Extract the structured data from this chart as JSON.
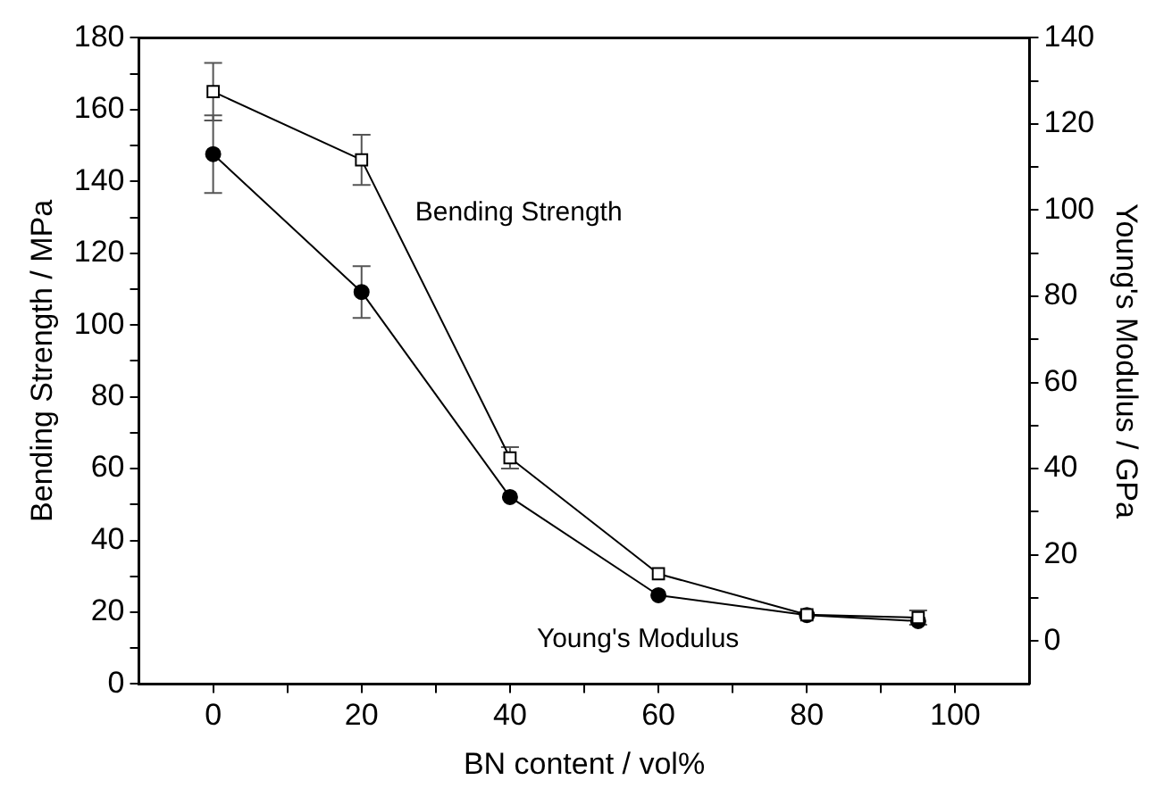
{
  "chart_data": {
    "type": "line",
    "xlabel": "BN content / vol%",
    "ylabel": "Bending Strength / MPa",
    "y2label": "Young's Modulus / GPa",
    "x": [
      0,
      20,
      40,
      60,
      80,
      95
    ],
    "series": [
      {
        "name": "Bending Strength",
        "color": "#000000",
        "marker": "square",
        "values": [
          165,
          146,
          63,
          30.7,
          19.3,
          18.5
        ],
        "errors": [
          8,
          7,
          3,
          null,
          null,
          2
        ]
      },
      {
        "name": "Young's Modulus",
        "color": "#000000",
        "marker": "circle",
        "axis": "y2",
        "values": [
          113,
          81,
          33.4,
          10.6,
          6,
          4.6
        ],
        "errors": [
          9,
          6,
          null,
          null,
          null,
          null
        ]
      }
    ],
    "xlim": [
      -10,
      110
    ],
    "xticks": [
      0,
      {
        "value": 10,
        "label": null
      },
      20,
      {
        "value": 30,
        "label": null
      },
      40,
      {
        "value": 50,
        "label": null
      },
      60,
      {
        "value": 70,
        "label": null
      },
      80,
      {
        "value": 90,
        "label": null
      },
      100
    ],
    "ylim": [
      0,
      180
    ],
    "yticks": [
      0,
      {
        "value": 10,
        "label": null
      },
      20,
      {
        "value": 30,
        "label": null
      },
      40,
      {
        "value": 50,
        "label": null
      },
      60,
      {
        "value": 70,
        "label": null
      },
      80,
      {
        "value": 90,
        "label": null
      },
      100,
      {
        "value": 110,
        "label": null
      },
      120,
      {
        "value": 130,
        "label": null
      },
      140,
      {
        "value": 150,
        "label": null
      },
      160,
      {
        "value": 170,
        "label": null
      },
      180
    ],
    "y2lim": [
      -10,
      140
    ],
    "y2ticks": [
      0,
      {
        "value": 10,
        "label": null
      },
      20,
      {
        "value": 30,
        "label": null
      },
      40,
      {
        "value": 50,
        "label": null
      },
      60,
      {
        "value": 70,
        "label": null
      },
      80,
      {
        "value": 90,
        "label": null
      },
      100,
      {
        "value": 110,
        "label": null
      },
      120,
      {
        "value": 130,
        "label": null
      },
      140
    ],
    "grid": false,
    "legend": false,
    "line_style": "solid"
  }
}
